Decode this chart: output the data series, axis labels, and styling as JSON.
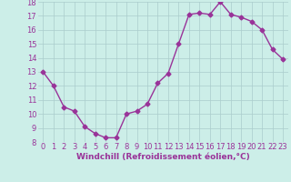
{
  "x": [
    0,
    1,
    2,
    3,
    4,
    5,
    6,
    7,
    8,
    9,
    10,
    11,
    12,
    13,
    14,
    15,
    16,
    17,
    18,
    19,
    20,
    21,
    22,
    23
  ],
  "y": [
    13,
    12,
    10.5,
    10.2,
    9.1,
    8.6,
    8.3,
    8.3,
    10.0,
    10.2,
    10.7,
    12.2,
    12.9,
    15.0,
    17.1,
    17.2,
    17.1,
    18.0,
    17.1,
    16.9,
    16.6,
    16.0,
    14.6,
    13.9
  ],
  "line_color": "#993399",
  "marker": "D",
  "markersize": 2.5,
  "linewidth": 1.0,
  "xlabel": "Windchill (Refroidissement éolien,°C)",
  "ylabel": "",
  "xlim": [
    -0.5,
    23.5
  ],
  "ylim": [
    8,
    18
  ],
  "yticks": [
    8,
    9,
    10,
    11,
    12,
    13,
    14,
    15,
    16,
    17,
    18
  ],
  "xticks": [
    0,
    1,
    2,
    3,
    4,
    5,
    6,
    7,
    8,
    9,
    10,
    11,
    12,
    13,
    14,
    15,
    16,
    17,
    18,
    19,
    20,
    21,
    22,
    23
  ],
  "bg_color": "#cceee8",
  "grid_color": "#aacccc",
  "xlabel_fontsize": 6.5,
  "tick_fontsize": 6.0,
  "xlabel_color": "#993399",
  "tick_color": "#993399",
  "grid_linewidth": 0.5
}
